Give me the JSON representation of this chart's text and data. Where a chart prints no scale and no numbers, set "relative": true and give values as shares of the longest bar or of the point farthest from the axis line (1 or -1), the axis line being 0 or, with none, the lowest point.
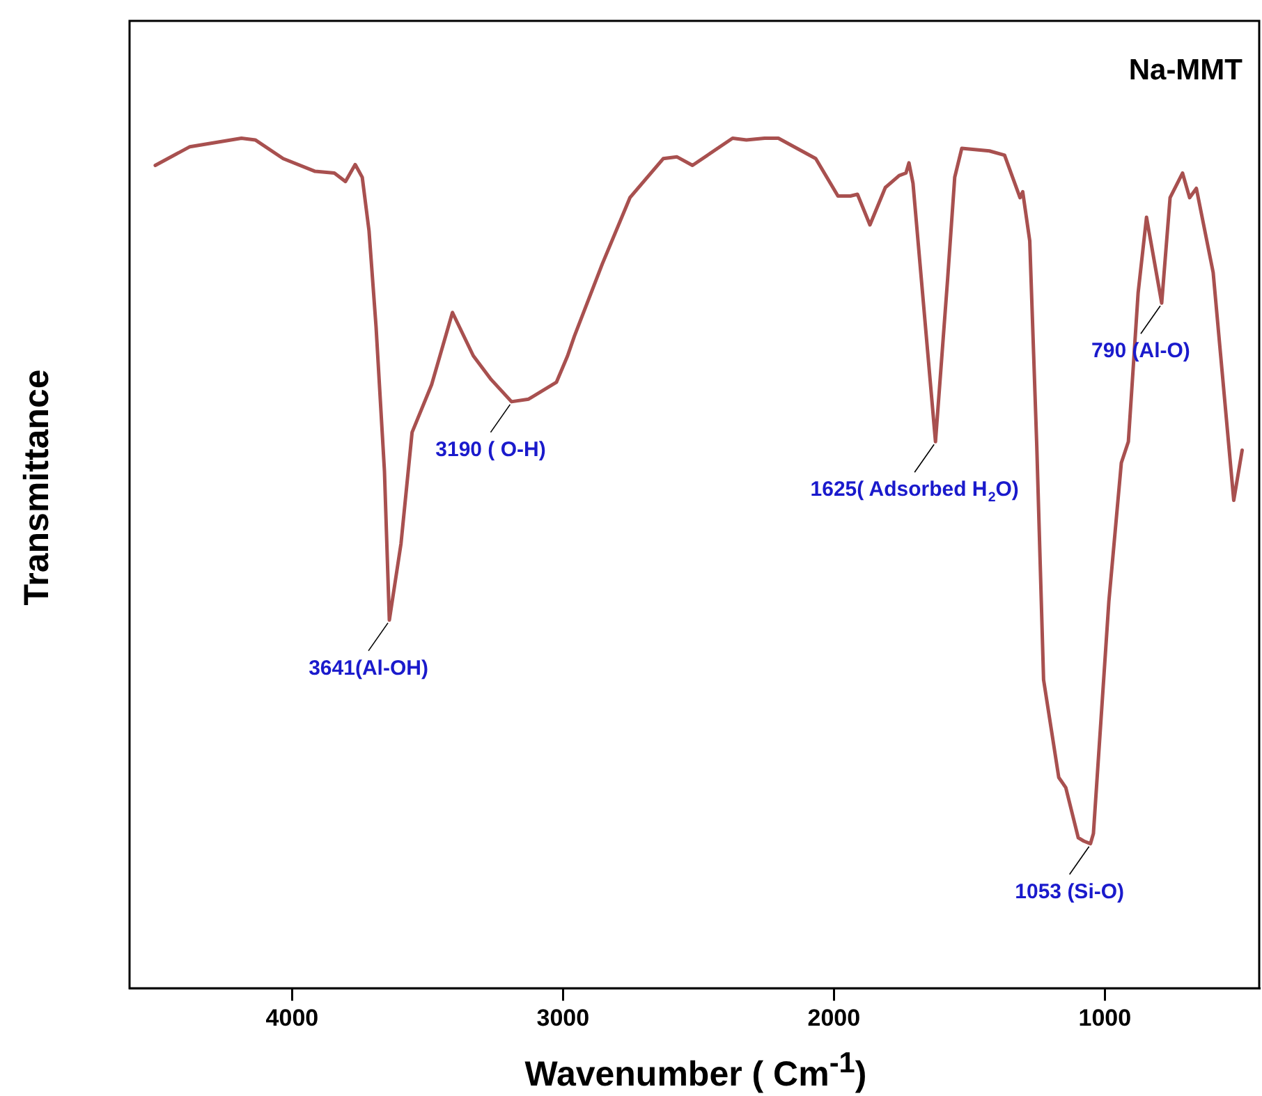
{
  "chart_data": {
    "type": "line",
    "title": "Na-MMT",
    "xlabel": "Wavenumber ( Cm$^{-1}$)",
    "ylabel": "Transmittance",
    "relative": true,
    "xlim": [
      4600,
      430
    ],
    "xticks": [
      4000,
      3000,
      2000,
      1000
    ],
    "grid": false,
    "legend": false,
    "marker": "none",
    "line_style": "solid",
    "annotations": [
      {
        "text": "3641(Al-OH)",
        "x": 3641,
        "y": 0.433
      },
      {
        "text": "3190 ( O-H)",
        "x": 3190,
        "y": 0.69
      },
      {
        "text": "1625( Adsorbed H$_{2}$O)",
        "x": 1625,
        "y": 0.643
      },
      {
        "text": "1053 (Si-O)",
        "x": 1053,
        "y": 0.17
      },
      {
        "text": "790 (Al-O)",
        "x": 790,
        "y": 0.806
      }
    ],
    "series": [
      {
        "color": "#a8504f",
        "x": [
          4505,
          4377,
          4187,
          4136,
          4033,
          3915,
          3844,
          3803,
          3767,
          3741,
          3716,
          3690,
          3659,
          3641,
          3598,
          3557,
          3485,
          3408,
          3331,
          3265,
          3190,
          3127,
          3024,
          2983,
          2958,
          2855,
          2753,
          2630,
          2579,
          2522,
          2374,
          2323,
          2256,
          2205,
          2067,
          1985,
          1939,
          1913,
          1867,
          1810,
          1759,
          1734,
          1723,
          1708,
          1625,
          1580,
          1554,
          1528,
          1426,
          1370,
          1313,
          1303,
          1277,
          1251,
          1226,
          1170,
          1144,
          1098,
          1077,
          1053,
          1042,
          985,
          939,
          913,
          877,
          846,
          790,
          759,
          713,
          687,
          662,
          600,
          524,
          493
        ],
        "values": [
          0.968,
          0.99,
          1,
          0.998,
          0.976,
          0.961,
          0.959,
          0.949,
          0.969,
          0.954,
          0.891,
          0.778,
          0.608,
          0.433,
          0.523,
          0.654,
          0.71,
          0.795,
          0.744,
          0.716,
          0.69,
          0.693,
          0.713,
          0.744,
          0.767,
          0.852,
          0.93,
          0.976,
          0.978,
          0.968,
          1,
          0.998,
          1,
          1,
          0.976,
          0.932,
          0.932,
          0.934,
          0.898,
          0.942,
          0.956,
          0.959,
          0.971,
          0.947,
          0.643,
          0.835,
          0.954,
          0.988,
          0.985,
          0.98,
          0.93,
          0.937,
          0.879,
          0.637,
          0.363,
          0.248,
          0.236,
          0.177,
          0.173,
          0.17,
          0.182,
          0.455,
          0.618,
          0.643,
          0.818,
          0.907,
          0.806,
          0.93,
          0.959,
          0.93,
          0.941,
          0.842,
          0.574,
          0.633
        ]
      }
    ]
  }
}
